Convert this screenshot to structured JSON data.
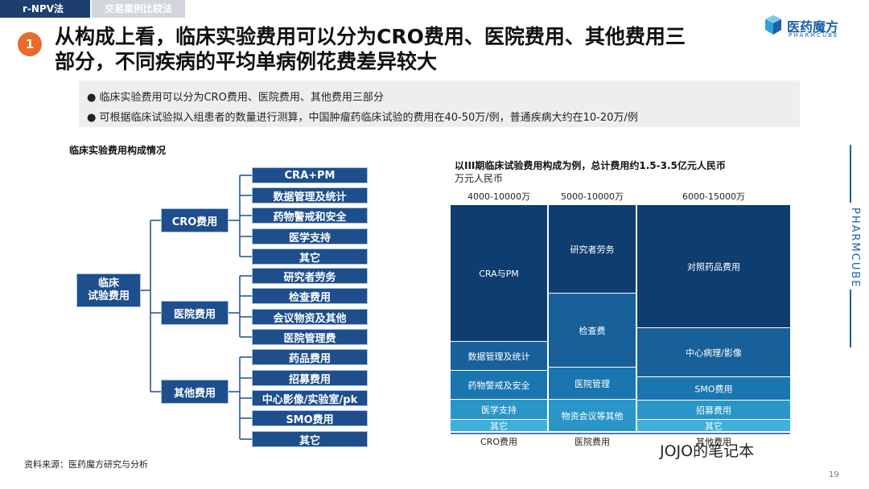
{
  "header": {
    "tab_active": "r-NPV法",
    "tab_inactive": "交易案例比较法",
    "number": "1",
    "title": "从构成上看，临床实验费用可以分为CRO费用、医院费用、其他费用三\n部分，不同疾病的平均单病例花费差异较大",
    "logo_cn": "医药魔方",
    "logo_en": "PHARMCUBE",
    "logo_icon": "cube-icon"
  },
  "bullets": [
    "临床实验费用可以分为CRO费用、医院费用、其他费用三部分",
    "可根据临床试验拟入组患者的数量进行测算，中国肿瘤药临床试验的费用在40-50万/例，普通疾病大约在10-20万/例"
  ],
  "tree": {
    "title": "临床实验费用构成情况",
    "root": "临床\n试验费用",
    "groups": [
      {
        "label": "CRO费用",
        "items": [
          "CRA+PM",
          "数据管理及统计",
          "药物警戒和安全",
          "医学支持",
          "其它"
        ]
      },
      {
        "label": "医院费用",
        "items": [
          "研究者劳务",
          "检查费用",
          "会议物资及其他",
          "医院管理费"
        ]
      },
      {
        "label": "其他费用",
        "items": [
          "药品费用",
          "招募费用",
          "中心影像/实验室/pk",
          "SMO费用",
          "其它"
        ]
      }
    ]
  },
  "chart_data": {
    "type": "mosaic",
    "title": "以III期临床试验费用构成为例，总计费用约1.5-3.5亿元人民币",
    "unit": "万元人民币",
    "columns": [
      {
        "name": "CRO费用",
        "range": "4000-10000万",
        "width": 120,
        "segments": [
          {
            "label": "CRA与PM",
            "value": 170,
            "color": "#0e3e6f"
          },
          {
            "label": "数据管理及统计",
            "value": 36,
            "color": "#17609a"
          },
          {
            "label": "药物警戒及安全",
            "value": 36,
            "color": "#1a76b0"
          },
          {
            "label": "医学支持",
            "value": 25,
            "color": "#2a96c8"
          },
          {
            "label": "其它",
            "value": 15,
            "color": "#3fb0dc"
          }
        ]
      },
      {
        "name": "医院费用",
        "range": "5000-10000万",
        "width": 108,
        "segments": [
          {
            "label": "研究者劳务",
            "value": 110,
            "color": "#0e3e6f"
          },
          {
            "label": "检查费",
            "value": 92,
            "color": "#17609a"
          },
          {
            "label": "医院管理",
            "value": 40,
            "color": "#1a76b0"
          },
          {
            "label": "物资会议等其他",
            "value": 40,
            "color": "#2a96c8"
          }
        ]
      },
      {
        "name": "其他费用",
        "range": "6000-15000万",
        "width": 190,
        "segments": [
          {
            "label": "对照药品费用",
            "value": 153,
            "color": "#0e3e6f"
          },
          {
            "label": "中心病理/影像",
            "value": 61,
            "color": "#17609a"
          },
          {
            "label": "SMO费用",
            "value": 29,
            "color": "#1a76b0"
          },
          {
            "label": "招募费用",
            "value": 24,
            "color": "#2a96c8"
          },
          {
            "label": "其它",
            "value": 15,
            "color": "#3fb0dc"
          }
        ]
      }
    ]
  },
  "side_brand": "PHARMCUBE",
  "source": "资料来源：医药魔方研究与分析",
  "watermark": "JOJO的笔记本",
  "page_number": "19"
}
